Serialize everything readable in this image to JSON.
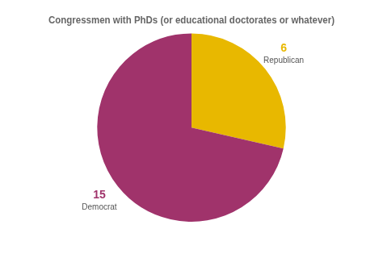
{
  "chart_data": {
    "type": "pie",
    "title": "Congressmen with PhDs (or educational doctorates or whatever)",
    "categories": [
      "Republican",
      "Democrat"
    ],
    "values": [
      6,
      15
    ],
    "colors": [
      "#E8B800",
      "#A0336B"
    ],
    "data_labels": true,
    "legend": false
  }
}
